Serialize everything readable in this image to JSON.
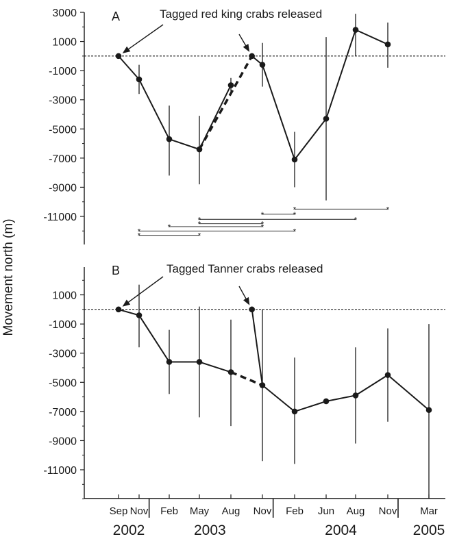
{
  "chart_data": {
    "type": "line",
    "ylabel": "Movement north (m)",
    "xaxis": {
      "month_ticks": [
        {
          "label": "Sep",
          "x": "2002-09"
        },
        {
          "label": "Nov",
          "x": "2002-11"
        },
        {
          "label": "Feb",
          "x": "2003-02"
        },
        {
          "label": "May",
          "x": "2003-05"
        },
        {
          "label": "Aug",
          "x": "2003-08"
        },
        {
          "label": "Nov",
          "x": "2003-11"
        },
        {
          "label": "Feb",
          "x": "2004-02"
        },
        {
          "label": "Jun",
          "x": "2004-06"
        },
        {
          "label": "Aug",
          "x": "2004-08"
        },
        {
          "label": "Nov",
          "x": "2004-11"
        },
        {
          "label": "Mar",
          "x": "2005-03"
        }
      ],
      "year_labels": [
        {
          "label": "2002",
          "x": "2002-10"
        },
        {
          "label": "2003",
          "x": "2003-06"
        },
        {
          "label": "2004",
          "x": "2004-07"
        },
        {
          "label": "2005",
          "x": "2005-03"
        }
      ],
      "year_separators": [
        "2002-12",
        "2003-12",
        "2004-12"
      ]
    },
    "panels": [
      {
        "id": "A",
        "annotation": "Tagged red king crabs released",
        "ylim": [
          -13000,
          3000
        ],
        "yticks": [
          3000,
          1000,
          -1000,
          -3000,
          -5000,
          -7000,
          -9000,
          -11000
        ],
        "reference_line": 0,
        "release_points": [
          "2002-09",
          "2003-10"
        ],
        "series": [
          {
            "points": [
              {
                "x": "2002-09",
                "y": 0
              },
              {
                "x": "2002-11",
                "y": -1600,
                "lo": -2600,
                "hi": -600
              },
              {
                "x": "2003-02",
                "y": -5700,
                "lo": -8200,
                "hi": -3400
              },
              {
                "x": "2003-05",
                "y": -6400,
                "lo": -8800,
                "hi": -4100
              },
              {
                "x": "2003-08",
                "y": -2000,
                "lo": -2600,
                "hi": -1500
              }
            ]
          },
          {
            "points": [
              {
                "x": "2003-10",
                "y": 0
              },
              {
                "x": "2003-11",
                "y": -600,
                "lo": -2100,
                "hi": 900
              },
              {
                "x": "2004-02",
                "y": -7100,
                "lo": -9000,
                "hi": -5200
              },
              {
                "x": "2004-06",
                "y": -4300,
                "lo": -9900,
                "hi": 1300
              },
              {
                "x": "2004-08",
                "y": 1800,
                "lo": 0,
                "hi": 2900
              },
              {
                "x": "2004-11",
                "y": 800,
                "lo": -800,
                "hi": 2300
              }
            ]
          }
        ],
        "dashed_segments": [
          {
            "from": 3,
            "to": 5
          }
        ],
        "significance": [
          {
            "from": "2004-02",
            "to": "2004-11",
            "y": -10500
          },
          {
            "from": "2003-11",
            "to": "2004-02",
            "y": -10850
          },
          {
            "from": "2003-05",
            "to": "2004-08",
            "y": -11200
          },
          {
            "from": "2003-05",
            "to": "2003-11",
            "y": -11500
          },
          {
            "from": "2003-02",
            "to": "2003-11",
            "y": -11700
          },
          {
            "from": "2002-11",
            "to": "2004-02",
            "y": -12000
          },
          {
            "from": "2002-11",
            "to": "2003-05",
            "y": -12300
          }
        ]
      },
      {
        "id": "B",
        "annotation": "Tagged Tanner crabs released",
        "ylim": [
          -13000,
          3000
        ],
        "yticks": [
          1000,
          -1000,
          -3000,
          -5000,
          -7000,
          -9000,
          -11000
        ],
        "reference_line": 0,
        "release_points": [
          "2002-09",
          "2003-10"
        ],
        "series": [
          {
            "points": [
              {
                "x": "2002-09",
                "y": 0
              },
              {
                "x": "2002-11",
                "y": -400,
                "lo": -2600,
                "hi": 1700
              },
              {
                "x": "2003-02",
                "y": -3600,
                "lo": -5800,
                "hi": -1400
              },
              {
                "x": "2003-05",
                "y": -3600,
                "lo": -7400,
                "hi": 200
              },
              {
                "x": "2003-08",
                "y": -4300,
                "lo": -8000,
                "hi": -700
              }
            ]
          },
          {
            "points": [
              {
                "x": "2003-10",
                "y": 0
              },
              {
                "x": "2003-11",
                "y": -5200,
                "lo": -10400,
                "hi": 0
              },
              {
                "x": "2004-02",
                "y": -7000,
                "lo": -10600,
                "hi": -3300
              },
              {
                "x": "2004-06",
                "y": -6300
              },
              {
                "x": "2004-08",
                "y": -5900,
                "lo": -9200,
                "hi": -2600
              },
              {
                "x": "2004-11",
                "y": -4500,
                "lo": -7700,
                "hi": -1300
              },
              {
                "x": "2005-03",
                "y": -6900,
                "lo": -13000,
                "hi": -1000
              }
            ]
          }
        ],
        "dashed_segments": [
          {
            "from": 4,
            "to": 6
          }
        ]
      }
    ]
  }
}
